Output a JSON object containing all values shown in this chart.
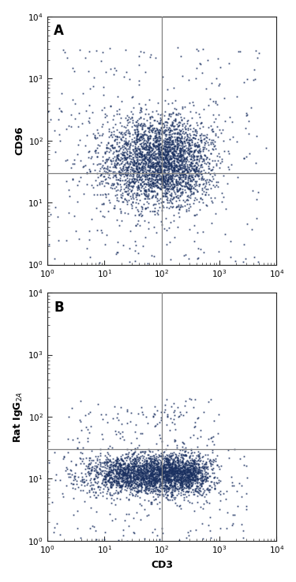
{
  "panel_A": {
    "label": "A",
    "ylabel": "CD96",
    "xlabel": "",
    "gate_x": 100,
    "gate_y": 30,
    "xlim": [
      1,
      10000
    ],
    "ylim": [
      1,
      10000
    ]
  },
  "panel_B": {
    "label": "B",
    "ylabel": "Rat IgG$_{2A}$",
    "xlabel": "CD3",
    "gate_x": 100,
    "gate_y": 30,
    "xlim": [
      1,
      10000
    ],
    "ylim": [
      1,
      10000
    ]
  },
  "dot_color": "#1a3060",
  "dot_size": 2.5,
  "dot_alpha": 0.85,
  "gate_color": "#808080",
  "gate_linewidth": 0.9,
  "tick_label_fontsize": 7.5,
  "axis_label_fontsize": 9,
  "panel_label_fontsize": 12,
  "bg_color": "#ffffff"
}
